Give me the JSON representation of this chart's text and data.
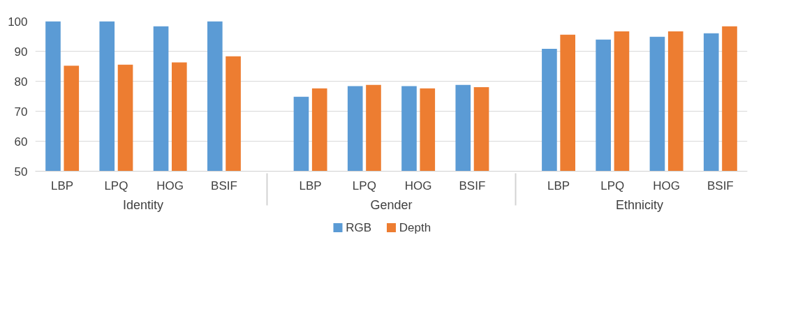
{
  "chart_data": {
    "type": "bar",
    "categories": [
      "LBP",
      "LPQ",
      "HOG",
      "BSIF",
      "LBP",
      "LPQ",
      "HOG",
      "BSIF",
      "LBP",
      "LPQ",
      "HOG",
      "BSIF"
    ],
    "annotations": [
      "Identity",
      "Gender",
      "Ethnicity"
    ],
    "series": [
      {
        "name": "RGB",
        "color": "#5b9bd5",
        "values": [
          100,
          100,
          98.3,
          100,
          74.8,
          78.4,
          78.4,
          78.8,
          90.8,
          93.9,
          94.8,
          96.0
        ]
      },
      {
        "name": "Depth",
        "color": "#ed7d31",
        "values": [
          85.2,
          85.5,
          86.3,
          88.3,
          77.6,
          78.8,
          77.6,
          78.0,
          95.5,
          96.6,
          96.6,
          98.3
        ]
      }
    ],
    "ylim": [
      50,
      100
    ],
    "yticks": [
      50,
      60,
      70,
      80,
      90,
      100
    ],
    "grid": "y",
    "legend": "bottom"
  }
}
